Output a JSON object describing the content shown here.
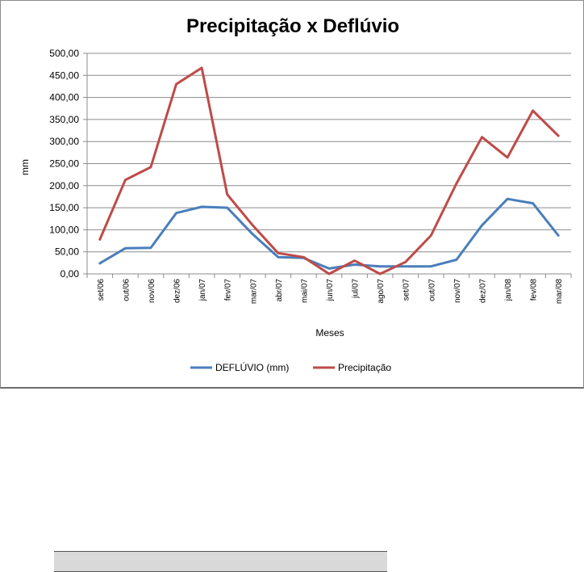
{
  "chart_data": {
    "type": "line",
    "title": "Precipitação x Deflúvio",
    "xlabel": "Meses",
    "ylabel": "mm",
    "ylim": [
      0,
      500
    ],
    "yticks": [
      "0,00",
      "50,00",
      "100,00",
      "150,00",
      "200,00",
      "250,00",
      "300,00",
      "350,00",
      "400,00",
      "450,00",
      "500,00"
    ],
    "categories": [
      "set/06",
      "out/06",
      "nov/06",
      "dez/06",
      "jan/07",
      "fev/07",
      "mar/07",
      "abr/07",
      "mai/07",
      "jun/07",
      "jul/07",
      "ago/07",
      "set/07",
      "out/07",
      "nov/07",
      "dez/07",
      "jan/08",
      "fev/08",
      "mar/08"
    ],
    "grid": true,
    "legend_position": "bottom",
    "series": [
      {
        "name": "DEFLÚVIO (mm)",
        "color": "#4a7ebb",
        "values": [
          24,
          58,
          59,
          138,
          152,
          150,
          90,
          38,
          36,
          12,
          21,
          17,
          17,
          17,
          32,
          110,
          170,
          160,
          87
        ]
      },
      {
        "name": "Precipitação",
        "color": "#be4b48",
        "values": [
          78,
          213,
          242,
          430,
          467,
          180,
          110,
          47,
          38,
          0,
          30,
          0,
          27,
          87,
          205,
          310,
          264,
          370,
          313
        ]
      }
    ]
  }
}
